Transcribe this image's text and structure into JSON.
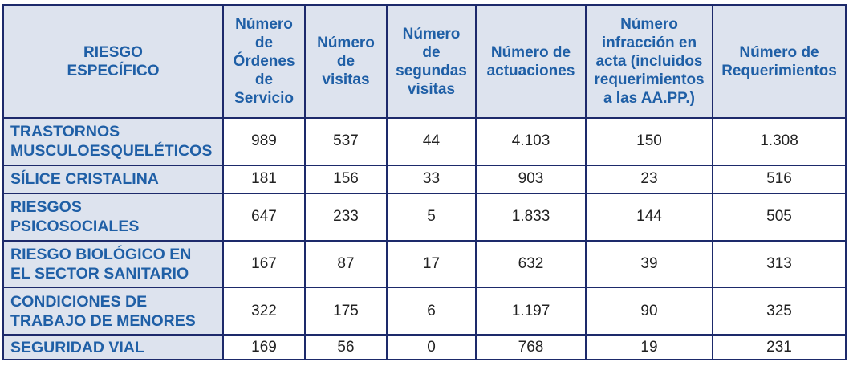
{
  "table": {
    "headers": [
      "RIESGO\nESPECÍFICO",
      "Número\nde\nÓrdenes\nde\nServicio",
      "Número\nde\nvisitas",
      "Número\nde\nsegundas\nvisitas",
      "Número de\nactuaciones",
      "Número\ninfracción en\nacta (incluidos\nrequerimientos\na las AA.PP.)",
      "Número de\nRequerimientos"
    ],
    "rows": [
      {
        "riesgo": "TRASTORNOS\nMUSCULOESQUELÉTICOS",
        "values": [
          "989",
          "537",
          "44",
          "4.103",
          "150",
          "1.308"
        ]
      },
      {
        "riesgo": "SÍLICE CRISTALINA",
        "values": [
          "181",
          "156",
          "33",
          "903",
          "23",
          "516"
        ]
      },
      {
        "riesgo": "RIESGOS\nPSICOSOCIALES",
        "values": [
          "647",
          "233",
          "5",
          "1.833",
          "144",
          "505"
        ]
      },
      {
        "riesgo": "RIESGO BIOLÓGICO EN\nEL SECTOR SANITARIO",
        "values": [
          "167",
          "87",
          "17",
          "632",
          "39",
          "313"
        ]
      },
      {
        "riesgo": "CONDICIONES DE\nTRABAJO DE MENORES",
        "values": [
          "322",
          "175",
          "6",
          "1.197",
          "90",
          "325"
        ]
      },
      {
        "riesgo": "SEGURIDAD VIAL",
        "values": [
          "169",
          "56",
          "0",
          "768",
          "19",
          "231"
        ]
      }
    ]
  },
  "colors": {
    "header_text": "#1f5fa6",
    "header_bg": "#dde3ee",
    "border": "#1d2a6b",
    "cell_text": "#222222"
  }
}
